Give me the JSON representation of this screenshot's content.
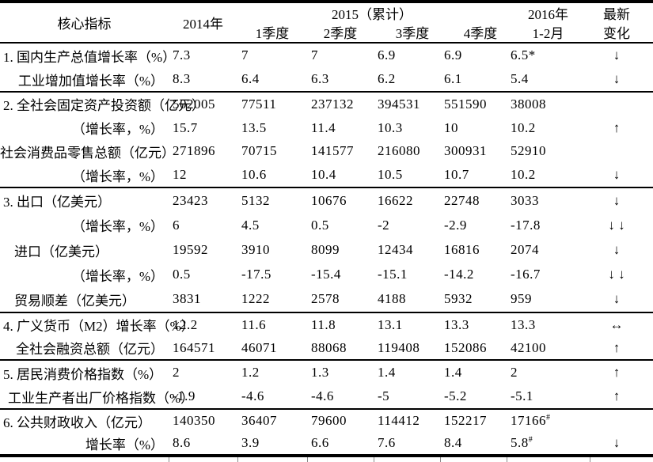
{
  "table": {
    "header": {
      "core_label": "核心指标",
      "col_2014": "2014年",
      "group_2015": "2015（累计）",
      "quarters": [
        "1季度",
        "2季度",
        "3季度",
        "4季度"
      ],
      "col_2016": "2016年",
      "col_2016_sub": "1-2月",
      "latest_line1": "最新",
      "latest_line2": "变化"
    },
    "sections": [
      {
        "rows": [
          {
            "label": "1. 国内生产总值增长率（%）",
            "style": "main",
            "values": [
              "7.3",
              "7",
              "7",
              "6.9",
              "6.9",
              "6.5*"
            ],
            "change": "↓"
          },
          {
            "label": "工业增加值增长率（%）",
            "style": "right",
            "values": [
              "8.3",
              "6.4",
              "6.3",
              "6.2",
              "6.1",
              "5.4"
            ],
            "change": "↓"
          }
        ]
      },
      {
        "rows": [
          {
            "label": "2. 全社会固定资产投资额（亿元）",
            "style": "main",
            "values": [
              "502005",
              "77511",
              "237132",
              "394531",
              "551590",
              "38008"
            ],
            "change": ""
          },
          {
            "label": "（增长率，%）",
            "style": "right",
            "values": [
              "15.7",
              "13.5",
              "11.4",
              "10.3",
              "10",
              "10.2"
            ],
            "change": "↑"
          },
          {
            "label": "社会消费品零售总额（亿元）",
            "style": "right",
            "values": [
              "271896",
              "70715",
              "141577",
              "216080",
              "300931",
              "52910"
            ],
            "change": ""
          },
          {
            "label": "（增长率，%）",
            "style": "right",
            "values": [
              "12",
              "10.6",
              "10.4",
              "10.5",
              "10.7",
              "10.2"
            ],
            "change": "↓"
          }
        ]
      },
      {
        "rows": [
          {
            "label": "3. 出口（亿美元）",
            "style": "main",
            "values": [
              "23423",
              "5132",
              "10676",
              "16622",
              "22748",
              "3033"
            ],
            "change": "↓"
          },
          {
            "label": "（增长率，%）",
            "style": "right",
            "values": [
              "6",
              "4.5",
              "0.5",
              "-2",
              "-2.9",
              "-17.8"
            ],
            "change": "↓ ↓"
          },
          {
            "label": "进口（亿美元）",
            "style": "indent",
            "values": [
              "19592",
              "3910",
              "8099",
              "12434",
              "16816",
              "2074"
            ],
            "change": "↓"
          },
          {
            "label": "（增长率，%）",
            "style": "right",
            "values": [
              "0.5",
              "-17.5",
              "-15.4",
              "-15.1",
              "-14.2",
              "-16.7"
            ],
            "change": "↓ ↓"
          },
          {
            "label": "贸易顺差（亿美元）",
            "style": "indent",
            "values": [
              "3831",
              "1222",
              "2578",
              "4188",
              "5932",
              "959"
            ],
            "change": "↓"
          }
        ]
      },
      {
        "rows": [
          {
            "label": "4. 广义货币（M2）增长率（%）",
            "style": "main",
            "values": [
              "12.2",
              "11.6",
              "11.8",
              "13.1",
              "13.3",
              "13.3"
            ],
            "change": "↔"
          },
          {
            "label": "全社会融资总额（亿元）",
            "style": "right",
            "values": [
              "164571",
              "46071",
              "88068",
              "119408",
              "152086",
              "42100"
            ],
            "change": "↑"
          }
        ]
      },
      {
        "rows": [
          {
            "label": "5. 居民消费价格指数（%）",
            "style": "main",
            "values": [
              "2",
              "1.2",
              "1.3",
              "1.4",
              "1.4",
              "2"
            ],
            "change": "↑"
          },
          {
            "label": "工业生产者出厂价格指数（%）",
            "style": "indent-sm",
            "values": [
              "-1.9",
              "-4.6",
              "-4.6",
              "-5",
              "-5.2",
              "-5.1"
            ],
            "change": "↑"
          }
        ]
      },
      {
        "rows": [
          {
            "label": "6. 公共财政收入（亿元）",
            "style": "main",
            "values": [
              "140350",
              "36407",
              "79600",
              "114412",
              "152217",
              {
                "v": "17166",
                "sup": "#"
              }
            ],
            "change": ""
          },
          {
            "label": "增长率（%）",
            "style": "right",
            "values": [
              "8.6",
              "3.9",
              "6.6",
              "7.6",
              "8.4",
              {
                "v": "5.8",
                "sup": "#"
              }
            ],
            "change": "↓"
          }
        ]
      }
    ]
  }
}
